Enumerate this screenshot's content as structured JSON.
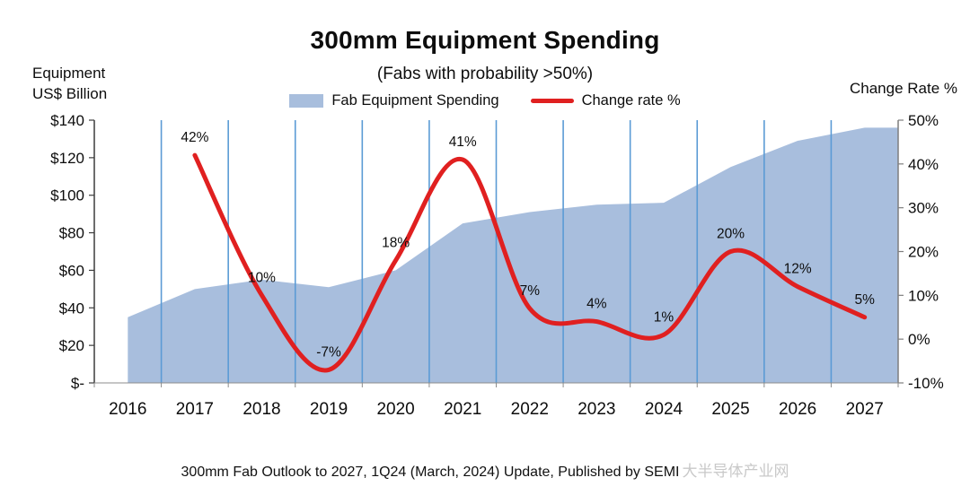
{
  "header": {
    "title": "300mm Equipment Spending",
    "subtitle": "(Fabs with probability >50%)",
    "left_axis_label_line1": "Equipment",
    "left_axis_label_line2": "US$ Billion",
    "right_axis_label": "Change Rate %"
  },
  "legend": {
    "items": [
      {
        "label": "Fab Equipment Spending",
        "swatch": "area-swatch",
        "color": "#a8bedd"
      },
      {
        "label": "Change rate %",
        "swatch": "line-swatch",
        "color": "#e02020"
      }
    ]
  },
  "footer": {
    "text": "300mm Fab Outlook to 2027, 1Q24 (March, 2024) Update, Published by SEMI",
    "watermark": "大半导体产业网"
  },
  "chart_data": {
    "type": "area",
    "title": "300mm Equipment Spending",
    "subtitle": "(Fabs with probability >50%)",
    "categories": [
      "2016",
      "2017",
      "2018",
      "2019",
      "2020",
      "2021",
      "2022",
      "2023",
      "2024",
      "2025",
      "2026",
      "2027"
    ],
    "series": [
      {
        "name": "Fab Equipment Spending",
        "type": "area",
        "axis": "left",
        "color": "#a8bedd",
        "values": [
          35,
          50,
          55,
          51,
          60,
          85,
          91,
          95,
          96,
          115,
          129,
          136
        ]
      },
      {
        "name": "Change rate %",
        "type": "line",
        "axis": "right",
        "color": "#e02020",
        "values": [
          null,
          42,
          10,
          -7,
          18,
          41,
          7,
          4,
          1,
          20,
          12,
          5
        ],
        "point_labels": [
          "",
          "42%",
          "10%",
          "-7%",
          "18%",
          "41%",
          "7%",
          "4%",
          "1%",
          "20%",
          "12%",
          "5%"
        ]
      }
    ],
    "left_axis": {
      "label": "Equipment US$ Billion",
      "min": 0,
      "max": 140,
      "ticks": [
        {
          "value": 140,
          "label": "$140"
        },
        {
          "value": 120,
          "label": "$120"
        },
        {
          "value": 100,
          "label": "$100"
        },
        {
          "value": 80,
          "label": "$80"
        },
        {
          "value": 60,
          "label": "$60"
        },
        {
          "value": 40,
          "label": "$40"
        },
        {
          "value": 20,
          "label": "$20"
        },
        {
          "value": 0,
          "label": "$-"
        }
      ]
    },
    "right_axis": {
      "label": "Change Rate %",
      "min": -10,
      "max": 50,
      "ticks": [
        {
          "value": 50,
          "label": "50%"
        },
        {
          "value": 40,
          "label": "40%"
        },
        {
          "value": 30,
          "label": "30%"
        },
        {
          "value": 20,
          "label": "20%"
        },
        {
          "value": 10,
          "label": "10%"
        },
        {
          "value": 0,
          "label": "0%"
        },
        {
          "value": -10,
          "label": "-10%"
        }
      ]
    },
    "gridline_color": "#5b9bd5",
    "grid": "vertical-only",
    "legend_position": "top-center"
  }
}
